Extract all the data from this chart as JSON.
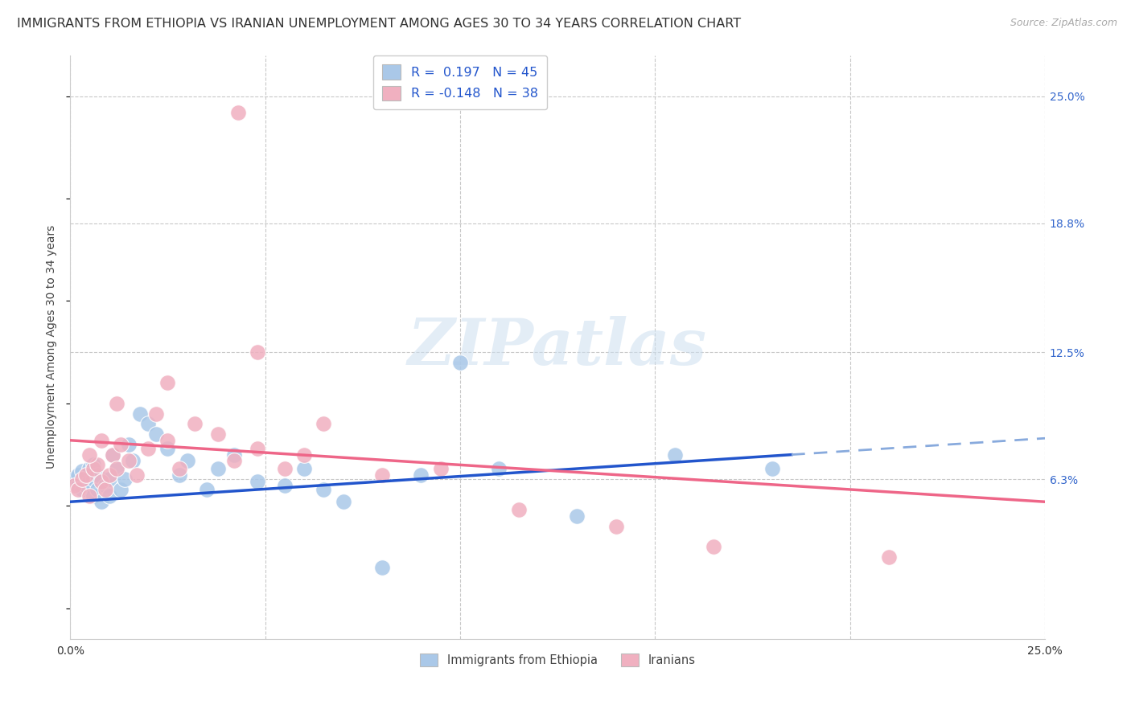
{
  "title": "IMMIGRANTS FROM ETHIOPIA VS IRANIAN UNEMPLOYMENT AMONG AGES 30 TO 34 YEARS CORRELATION CHART",
  "source": "Source: ZipAtlas.com",
  "ylabel": "Unemployment Among Ages 30 to 34 years",
  "xlim": [
    0.0,
    0.25
  ],
  "ylim": [
    -0.015,
    0.27
  ],
  "x_tick_labels": [
    "0.0%",
    "",
    "",
    "",
    "",
    "25.0%"
  ],
  "x_tick_positions": [
    0.0,
    0.05,
    0.1,
    0.15,
    0.2,
    0.25
  ],
  "y_tick_labels_right": [
    "25.0%",
    "18.8%",
    "12.5%",
    "6.3%"
  ],
  "y_tick_positions_right": [
    0.25,
    0.188,
    0.125,
    0.063
  ],
  "legend_labels_top": [
    "R =  0.197   N = 45",
    "R = -0.148   N = 38"
  ],
  "legend_labels_bottom": [
    "Immigrants from Ethiopia",
    "Iranians"
  ],
  "watermark": "ZIPatlas",
  "background_color": "#ffffff",
  "grid_color": "#c8c8c8",
  "scatter_blue_color": "#aac8e8",
  "scatter_pink_color": "#f0b0c0",
  "scatter_size": 200,
  "trend_blue_color": "#2255cc",
  "trend_blue_dash_color": "#88aadd",
  "trend_pink_color": "#ee6688",
  "title_fontsize": 11.5,
  "axis_label_fontsize": 10,
  "blue_x": [
    0.001,
    0.002,
    0.002,
    0.003,
    0.003,
    0.004,
    0.004,
    0.005,
    0.005,
    0.006,
    0.006,
    0.006,
    0.007,
    0.007,
    0.008,
    0.009,
    0.01,
    0.01,
    0.011,
    0.012,
    0.013,
    0.014,
    0.015,
    0.016,
    0.018,
    0.02,
    0.022,
    0.025,
    0.028,
    0.03,
    0.035,
    0.038,
    0.042,
    0.048,
    0.055,
    0.06,
    0.065,
    0.07,
    0.08,
    0.09,
    0.1,
    0.11,
    0.13,
    0.155,
    0.18
  ],
  "blue_y": [
    0.063,
    0.06,
    0.065,
    0.058,
    0.067,
    0.064,
    0.06,
    0.062,
    0.068,
    0.055,
    0.063,
    0.07,
    0.058,
    0.065,
    0.052,
    0.06,
    0.055,
    0.063,
    0.075,
    0.068,
    0.058,
    0.063,
    0.08,
    0.072,
    0.095,
    0.09,
    0.085,
    0.078,
    0.065,
    0.072,
    0.058,
    0.068,
    0.075,
    0.062,
    0.06,
    0.068,
    0.058,
    0.052,
    0.02,
    0.065,
    0.12,
    0.068,
    0.045,
    0.075,
    0.068
  ],
  "pink_x": [
    0.001,
    0.002,
    0.003,
    0.004,
    0.005,
    0.006,
    0.007,
    0.008,
    0.009,
    0.01,
    0.011,
    0.012,
    0.013,
    0.015,
    0.017,
    0.02,
    0.022,
    0.025,
    0.028,
    0.032,
    0.038,
    0.042,
    0.048,
    0.055,
    0.06,
    0.065,
    0.08,
    0.095,
    0.115,
    0.14,
    0.165,
    0.21,
    0.048,
    0.025,
    0.012,
    0.008,
    0.005,
    0.043
  ],
  "pink_y": [
    0.06,
    0.058,
    0.063,
    0.065,
    0.055,
    0.068,
    0.07,
    0.062,
    0.058,
    0.065,
    0.075,
    0.068,
    0.08,
    0.072,
    0.065,
    0.078,
    0.095,
    0.082,
    0.068,
    0.09,
    0.085,
    0.072,
    0.078,
    0.068,
    0.075,
    0.09,
    0.065,
    0.068,
    0.048,
    0.04,
    0.03,
    0.025,
    0.125,
    0.11,
    0.1,
    0.082,
    0.075,
    0.242
  ],
  "trend_blue_x0": 0.0,
  "trend_blue_y0": 0.052,
  "trend_blue_x1": 0.185,
  "trend_blue_y1": 0.075,
  "trend_blue_dash_x0": 0.185,
  "trend_blue_dash_y0": 0.075,
  "trend_blue_dash_x1": 0.25,
  "trend_blue_dash_y1": 0.083,
  "trend_pink_x0": 0.0,
  "trend_pink_y0": 0.082,
  "trend_pink_x1": 0.25,
  "trend_pink_y1": 0.052
}
